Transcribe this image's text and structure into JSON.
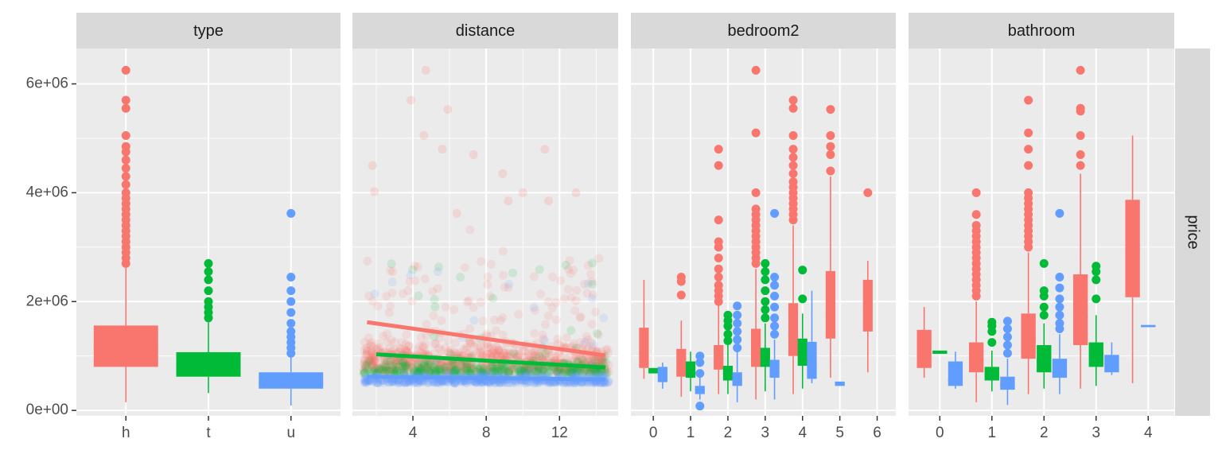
{
  "chart_data": {
    "type": "facet",
    "y_shared": {
      "ylim": [
        -100000,
        6650000
      ],
      "ticks": [
        0,
        2000000,
        4000000,
        6000000
      ],
      "tick_labels": [
        "0e+00",
        "2e+06",
        "4e+06",
        "6e+06"
      ]
    },
    "strip_right_label": "price",
    "colors": {
      "h": "#F8766D",
      "t": "#00BA38",
      "u": "#619CFF"
    },
    "background": {
      "panel": "#EBEBEB",
      "strip": "#D9D9D9",
      "grid": "#FFFFFF"
    },
    "panels": [
      {
        "strip": "type",
        "kind": "box",
        "xlim": [
          0.4,
          3.6
        ],
        "ticks": [
          1,
          2,
          3
        ],
        "tick_labels": [
          "h",
          "t",
          "u"
        ],
        "boxes": [
          {
            "x": 1,
            "group": "h",
            "w": 0.78,
            "q1": 800000,
            "med": 1150000,
            "q3": 1560000,
            "lo": 150000,
            "hi": 2620000,
            "out": [
              2700000,
              2800000,
              2900000,
              3000000,
              3100000,
              3200000,
              3300000,
              3400000,
              3500000,
              3600000,
              3700000,
              3800000,
              3900000,
              4000000,
              4150000,
              4300000,
              4450000,
              4600000,
              4750000,
              4850000,
              5050000,
              5550000,
              5700000,
              6250000
            ]
          },
          {
            "x": 2,
            "group": "t",
            "w": 0.78,
            "q1": 620000,
            "med": 850000,
            "q3": 1070000,
            "lo": 320000,
            "hi": 1620000,
            "out": [
              1700000,
              1800000,
              1900000,
              2000000,
              2200000,
              2400000,
              2550000,
              2700000
            ]
          },
          {
            "x": 3,
            "group": "u",
            "w": 0.78,
            "q1": 400000,
            "med": 520000,
            "q3": 700000,
            "lo": 90000,
            "hi": 1000000,
            "out": [
              1050000,
              1150000,
              1250000,
              1350000,
              1450000,
              1600000,
              1800000,
              2000000,
              2200000,
              2450000,
              3620000
            ]
          }
        ]
      },
      {
        "strip": "distance",
        "kind": "scatter",
        "xlim": [
          0.7,
          15.2
        ],
        "ticks": [
          4,
          8,
          12
        ],
        "tick_labels": [
          "4",
          "8",
          "12"
        ],
        "minor_ticks": [
          2,
          6,
          10,
          14
        ],
        "fits": [
          {
            "group": "h",
            "x": [
              1.5,
              14.5
            ],
            "y": [
              1620000,
              1010000
            ]
          },
          {
            "group": "t",
            "x": [
              2.0,
              14.5
            ],
            "y": [
              1030000,
              790000
            ]
          },
          {
            "group": "u",
            "x": [
              1.5,
              14.5
            ],
            "y": [
              620000,
              570000
            ]
          }
        ],
        "highlights": [
          {
            "x": 4.7,
            "y": 6250000
          },
          {
            "x": 3.9,
            "y": 5700000
          },
          {
            "x": 5.9,
            "y": 5530000
          },
          {
            "x": 4.6,
            "y": 5050000
          },
          {
            "x": 5.6,
            "y": 4800000
          },
          {
            "x": 11.2,
            "y": 4800000
          },
          {
            "x": 1.8,
            "y": 4500000
          },
          {
            "x": 7.3,
            "y": 4700000
          },
          {
            "x": 8.9,
            "y": 4350000
          },
          {
            "x": 10.0,
            "y": 4000000
          },
          {
            "x": 12.9,
            "y": 4000000
          },
          {
            "x": 1.9,
            "y": 4020000
          },
          {
            "x": 11.4,
            "y": 3850000
          },
          {
            "x": 9.2,
            "y": 3850000
          },
          {
            "x": 6.4,
            "y": 3620000
          }
        ]
      },
      {
        "strip": "bedroom2",
        "kind": "box",
        "xlim": [
          -0.6,
          6.5
        ],
        "ticks": [
          0,
          1,
          2,
          3,
          4,
          5,
          6
        ],
        "tick_labels": [
          "0",
          "1",
          "2",
          "3",
          "4",
          "5",
          "6"
        ],
        "boxes": [
          {
            "x": -0.25,
            "group": "h",
            "w": 0.26,
            "q1": 780000,
            "med": 1050000,
            "q3": 1520000,
            "lo": 580000,
            "hi": 2400000,
            "out": []
          },
          {
            "x": 0.0,
            "group": "t",
            "w": 0.26,
            "q1": 680000,
            "med": 720000,
            "q3": 780000,
            "lo": 680000,
            "hi": 780000,
            "out": []
          },
          {
            "x": 0.25,
            "group": "u",
            "w": 0.26,
            "q1": 520000,
            "med": 650000,
            "q3": 800000,
            "lo": 400000,
            "hi": 880000,
            "out": []
          },
          {
            "x": 0.75,
            "group": "h",
            "w": 0.26,
            "q1": 620000,
            "med": 820000,
            "q3": 1130000,
            "lo": 250000,
            "hi": 1650000,
            "out": [
              2120000,
              2370000,
              2450000
            ]
          },
          {
            "x": 1.0,
            "group": "t",
            "w": 0.26,
            "q1": 600000,
            "med": 700000,
            "q3": 900000,
            "lo": 350000,
            "hi": 1080000,
            "out": []
          },
          {
            "x": 1.25,
            "group": "u",
            "w": 0.26,
            "q1": 300000,
            "med": 380000,
            "q3": 450000,
            "lo": 200000,
            "hi": 600000,
            "out": [
              80000,
              680000,
              880000,
              1000000
            ]
          },
          {
            "x": 1.75,
            "group": "h",
            "w": 0.26,
            "q1": 750000,
            "med": 950000,
            "q3": 1200000,
            "lo": 300000,
            "hi": 1950000,
            "out": [
              2000000,
              2100000,
              2200000,
              2300000,
              2450000,
              2600000,
              2800000,
              3000000,
              3100000,
              3500000,
              4500000,
              4800000
            ]
          },
          {
            "x": 2.0,
            "group": "t",
            "w": 0.26,
            "q1": 550000,
            "med": 680000,
            "q3": 820000,
            "lo": 300000,
            "hi": 1200000,
            "out": [
              1280000,
              1400000,
              1550000,
              1650000,
              1750000
            ]
          },
          {
            "x": 2.25,
            "group": "u",
            "w": 0.26,
            "q1": 450000,
            "med": 550000,
            "q3": 700000,
            "lo": 150000,
            "hi": 1100000,
            "out": [
              1150000,
              1300000,
              1450000,
              1600000,
              1750000,
              1920000
            ]
          },
          {
            "x": 2.75,
            "group": "h",
            "w": 0.26,
            "q1": 800000,
            "med": 1100000,
            "q3": 1500000,
            "lo": 200000,
            "hi": 2600000,
            "out": [
              2700000,
              2800000,
              2900000,
              3000000,
              3100000,
              3200000,
              3300000,
              3400000,
              3500000,
              3600000,
              3700000,
              4000000,
              5100000,
              6250000
            ]
          },
          {
            "x": 3.0,
            "group": "t",
            "w": 0.26,
            "q1": 800000,
            "med": 1000000,
            "q3": 1150000,
            "lo": 350000,
            "hi": 1600000,
            "out": [
              1700000,
              1850000,
              2000000,
              2200000,
              2400000,
              2550000,
              2700000
            ]
          },
          {
            "x": 3.25,
            "group": "u",
            "w": 0.26,
            "q1": 600000,
            "med": 700000,
            "q3": 930000,
            "lo": 200000,
            "hi": 1300000,
            "out": [
              1400000,
              1550000,
              1700000,
              1900000,
              2100000,
              2300000,
              2450000,
              3620000
            ]
          },
          {
            "x": 3.75,
            "group": "h",
            "w": 0.26,
            "q1": 1000000,
            "med": 1400000,
            "q3": 1970000,
            "lo": 300000,
            "hi": 3400000,
            "out": [
              3500000,
              3600000,
              3700000,
              3800000,
              3900000,
              4000000,
              4100000,
              4200000,
              4350000,
              4500000,
              4650000,
              4800000,
              5050000,
              5550000,
              5700000
            ]
          },
          {
            "x": 4.0,
            "group": "t",
            "w": 0.26,
            "q1": 820000,
            "med": 1000000,
            "q3": 1320000,
            "lo": 400000,
            "hi": 1780000,
            "out": [
              2050000,
              2580000
            ]
          },
          {
            "x": 4.25,
            "group": "u",
            "w": 0.26,
            "q1": 580000,
            "med": 800000,
            "q3": 1260000,
            "lo": 500000,
            "hi": 2200000,
            "out": []
          },
          {
            "x": 4.75,
            "group": "h",
            "w": 0.26,
            "q1": 1320000,
            "med": 1800000,
            "q3": 2560000,
            "lo": 600000,
            "hi": 4300000,
            "out": [
              4400000,
              4700000,
              4850000,
              5050000,
              5530000
            ]
          },
          {
            "x": 5.0,
            "group": "u",
            "w": 0.26,
            "q1": 450000,
            "med": 490000,
            "q3": 530000,
            "lo": 450000,
            "hi": 530000,
            "out": []
          },
          {
            "x": 5.75,
            "group": "h",
            "w": 0.26,
            "q1": 1450000,
            "med": 1900000,
            "q3": 2400000,
            "lo": 700000,
            "hi": 2750000,
            "out": [
              4000000
            ]
          }
        ]
      },
      {
        "strip": "bathroom",
        "kind": "box",
        "xlim": [
          -0.6,
          4.5
        ],
        "ticks": [
          0,
          1,
          2,
          3,
          4
        ],
        "tick_labels": [
          "0",
          "1",
          "2",
          "3",
          "4"
        ],
        "boxes": [
          {
            "x": -0.3,
            "group": "h",
            "w": 0.28,
            "q1": 780000,
            "med": 1050000,
            "q3": 1480000,
            "lo": 600000,
            "hi": 1900000,
            "out": []
          },
          {
            "x": 0.0,
            "group": "t",
            "w": 0.28,
            "q1": 1040000,
            "med": 1070000,
            "q3": 1100000,
            "lo": 1040000,
            "hi": 1100000,
            "out": []
          },
          {
            "x": 0.3,
            "group": "u",
            "w": 0.28,
            "q1": 450000,
            "med": 550000,
            "q3": 900000,
            "lo": 400000,
            "hi": 1080000,
            "out": []
          },
          {
            "x": 0.7,
            "group": "h",
            "w": 0.28,
            "q1": 700000,
            "med": 920000,
            "q3": 1250000,
            "lo": 150000,
            "hi": 2000000,
            "out": [
              2100000,
              2200000,
              2300000,
              2400000,
              2500000,
              2600000,
              2700000,
              2800000,
              2900000,
              3000000,
              3100000,
              3200000,
              3300000,
              3400000,
              3600000,
              4000000
            ]
          },
          {
            "x": 1.0,
            "group": "t",
            "w": 0.28,
            "q1": 550000,
            "med": 650000,
            "q3": 800000,
            "lo": 350000,
            "hi": 1100000,
            "out": [
              1250000,
              1450000,
              1550000,
              1620000
            ]
          },
          {
            "x": 1.3,
            "group": "u",
            "w": 0.28,
            "q1": 380000,
            "med": 470000,
            "q3": 620000,
            "lo": 100000,
            "hi": 950000,
            "out": [
              1050000,
              1200000,
              1350000,
              1500000,
              1640000
            ]
          },
          {
            "x": 1.7,
            "group": "h",
            "w": 0.28,
            "q1": 950000,
            "med": 1300000,
            "q3": 1780000,
            "lo": 300000,
            "hi": 2900000,
            "out": [
              3000000,
              3100000,
              3200000,
              3300000,
              3400000,
              3500000,
              3600000,
              3700000,
              3800000,
              3900000,
              4000000,
              4500000,
              4800000,
              5100000,
              5700000
            ]
          },
          {
            "x": 2.0,
            "group": "t",
            "w": 0.28,
            "q1": 700000,
            "med": 900000,
            "q3": 1200000,
            "lo": 400000,
            "hi": 1600000,
            "out": [
              1750000,
              1900000,
              2100000,
              2200000,
              2700000
            ]
          },
          {
            "x": 2.3,
            "group": "u",
            "w": 0.28,
            "q1": 600000,
            "med": 700000,
            "q3": 950000,
            "lo": 300000,
            "hi": 1400000,
            "out": [
              1500000,
              1600000,
              1750000,
              1900000,
              2050000,
              2250000,
              2450000,
              3620000
            ]
          },
          {
            "x": 2.7,
            "group": "h",
            "w": 0.28,
            "q1": 1200000,
            "med": 1700000,
            "q3": 2500000,
            "lo": 400000,
            "hi": 4350000,
            "out": [
              4500000,
              4700000,
              5050000,
              5500000,
              5550000,
              6250000
            ]
          },
          {
            "x": 3.0,
            "group": "t",
            "w": 0.28,
            "q1": 800000,
            "med": 1000000,
            "q3": 1250000,
            "lo": 450000,
            "hi": 1750000,
            "out": [
              2050000,
              2400000,
              2550000,
              2650000
            ]
          },
          {
            "x": 3.3,
            "group": "u",
            "w": 0.28,
            "q1": 700000,
            "med": 850000,
            "q3": 1020000,
            "lo": 650000,
            "hi": 1250000,
            "out": []
          },
          {
            "x": 3.7,
            "group": "h",
            "w": 0.28,
            "q1": 2080000,
            "med": 2950000,
            "q3": 3870000,
            "lo": 500000,
            "hi": 5050000,
            "out": []
          },
          {
            "x": 4.0,
            "group": "u",
            "w": 0.28,
            "q1": 1530000,
            "med": 1550000,
            "q3": 1570000,
            "lo": 1530000,
            "hi": 1570000,
            "out": []
          }
        ]
      }
    ]
  }
}
